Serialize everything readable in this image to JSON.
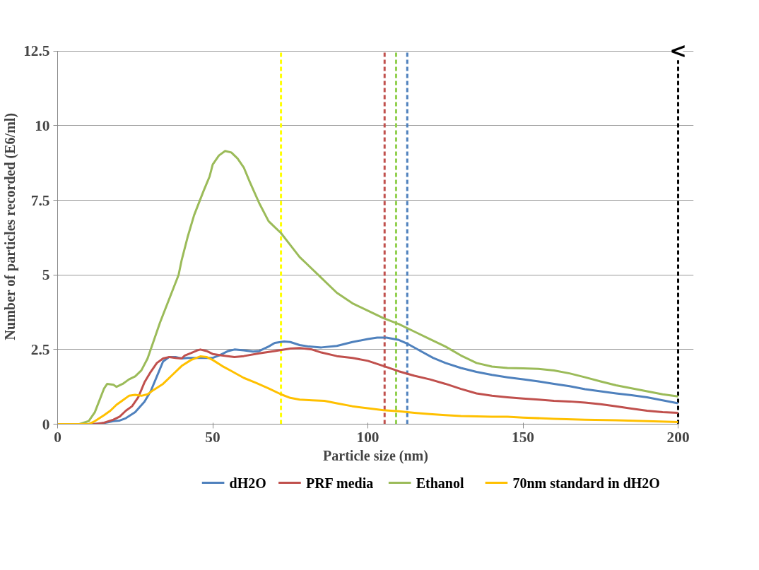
{
  "chart_data": {
    "type": "line",
    "xlabel": "Particle size (nm)",
    "ylabel": "Number of particles recorded (E6/ml)",
    "xlim": [
      0,
      200
    ],
    "ylim": [
      0,
      12.5
    ],
    "xticks": [
      0,
      50,
      100,
      150,
      200
    ],
    "yticks": [
      0,
      2.5,
      5,
      7.5,
      10,
      12.5
    ],
    "grid": "y",
    "legend": "bottom",
    "line_style": "solid",
    "marker": "none",
    "annotations": [
      {
        "text": "<",
        "x": 200,
        "y": 12.5
      }
    ],
    "ref_lines": [
      {
        "axis": "x",
        "value": 72,
        "label": null,
        "color": "#ffff00",
        "line_style": "dashed"
      },
      {
        "axis": "x",
        "value": 105.4,
        "label": null,
        "color": "#c0504d",
        "line_style": "dashed"
      },
      {
        "axis": "x",
        "value": 109.1,
        "label": null,
        "color": "#92d050",
        "line_style": "dashed"
      },
      {
        "axis": "x",
        "value": 112.7,
        "label": null,
        "color": "#4f81bd",
        "line_style": "dashed"
      },
      {
        "axis": "x",
        "value": 200,
        "label": null,
        "color": "#000000",
        "line_style": "dashed"
      }
    ],
    "series": [
      {
        "name": "dH2O",
        "color": "#4f81bd",
        "x": [
          0,
          10,
          14,
          18,
          20,
          22,
          25,
          28,
          30,
          32,
          34,
          36,
          38,
          40,
          42,
          46,
          50,
          52,
          55,
          57,
          60,
          63,
          65,
          68,
          70,
          73,
          75,
          78,
          81,
          85,
          90,
          95,
          100,
          103,
          106,
          110,
          113,
          117,
          121,
          125,
          130,
          135,
          140,
          145,
          150,
          155,
          160,
          165,
          170,
          175,
          180,
          185,
          190,
          195,
          200
        ],
        "values": [
          0,
          0,
          0.02,
          0.1,
          0.12,
          0.2,
          0.4,
          0.75,
          1.1,
          1.6,
          2.1,
          2.25,
          2.25,
          2.2,
          2.22,
          2.22,
          2.22,
          2.3,
          2.45,
          2.5,
          2.47,
          2.43,
          2.45,
          2.6,
          2.72,
          2.77,
          2.75,
          2.65,
          2.6,
          2.57,
          2.62,
          2.75,
          2.85,
          2.9,
          2.9,
          2.82,
          2.68,
          2.45,
          2.22,
          2.05,
          1.88,
          1.75,
          1.65,
          1.57,
          1.5,
          1.43,
          1.35,
          1.27,
          1.17,
          1.1,
          1.03,
          0.97,
          0.9,
          0.8,
          0.7
        ]
      },
      {
        "name": "PRF media",
        "color": "#c0504d",
        "x": [
          0,
          12,
          15,
          18,
          20,
          22,
          24,
          26,
          28,
          30,
          32,
          34,
          36,
          38,
          40,
          41,
          43,
          45,
          46,
          48,
          50,
          53,
          57,
          60,
          65,
          70,
          75,
          78,
          82,
          85,
          90,
          95,
          100,
          105,
          110,
          115,
          120,
          125,
          130,
          135,
          140,
          145,
          150,
          155,
          160,
          165,
          170,
          175,
          180,
          185,
          190,
          195,
          200
        ],
        "values": [
          0,
          0,
          0.05,
          0.15,
          0.25,
          0.45,
          0.6,
          0.9,
          1.4,
          1.75,
          2.05,
          2.2,
          2.25,
          2.22,
          2.2,
          2.3,
          2.38,
          2.47,
          2.5,
          2.45,
          2.35,
          2.3,
          2.25,
          2.28,
          2.37,
          2.45,
          2.53,
          2.55,
          2.5,
          2.4,
          2.28,
          2.22,
          2.12,
          1.95,
          1.77,
          1.62,
          1.5,
          1.35,
          1.18,
          1.03,
          0.95,
          0.9,
          0.86,
          0.82,
          0.78,
          0.76,
          0.72,
          0.67,
          0.6,
          0.52,
          0.45,
          0.4,
          0.38
        ]
      },
      {
        "name": "Ethanol",
        "color": "#9bbb59",
        "x": [
          0,
          7,
          10,
          12,
          15,
          16,
          18,
          19,
          21,
          23,
          25,
          27,
          29,
          31,
          33,
          36,
          39,
          40,
          42,
          44,
          47,
          49,
          50,
          52,
          54,
          56,
          58,
          60,
          62,
          65,
          68,
          70,
          72,
          75,
          78,
          80,
          85,
          90,
          95,
          100,
          105,
          110,
          115,
          120,
          125,
          130,
          135,
          140,
          145,
          150,
          155,
          160,
          165,
          170,
          175,
          180,
          185,
          190,
          195,
          200
        ],
        "values": [
          0,
          0,
          0.1,
          0.4,
          1.2,
          1.35,
          1.32,
          1.25,
          1.35,
          1.5,
          1.6,
          1.8,
          2.2,
          2.8,
          3.4,
          4.2,
          5.0,
          5.5,
          6.3,
          7.0,
          7.8,
          8.3,
          8.7,
          9.0,
          9.15,
          9.1,
          8.9,
          8.6,
          8.1,
          7.4,
          6.8,
          6.6,
          6.4,
          6.0,
          5.6,
          5.4,
          4.9,
          4.4,
          4.05,
          3.8,
          3.55,
          3.35,
          3.1,
          2.85,
          2.6,
          2.3,
          2.05,
          1.93,
          1.88,
          1.87,
          1.85,
          1.8,
          1.7,
          1.57,
          1.43,
          1.3,
          1.2,
          1.1,
          1.0,
          0.93
        ]
      },
      {
        "name": "70nm standard in dH2O",
        "color": "#ffc000",
        "x": [
          0,
          10,
          12,
          15,
          17,
          19,
          21,
          23,
          25,
          27,
          29,
          31,
          34,
          37,
          40,
          43,
          46,
          48,
          50,
          53,
          56,
          60,
          64,
          68,
          72,
          75,
          78,
          82,
          86,
          90,
          95,
          100,
          105,
          110,
          115,
          120,
          125,
          130,
          140,
          145,
          150,
          160,
          170,
          180,
          190,
          200
        ],
        "values": [
          0,
          0,
          0.1,
          0.3,
          0.45,
          0.65,
          0.8,
          0.95,
          0.98,
          0.95,
          1.0,
          1.15,
          1.35,
          1.65,
          1.95,
          2.15,
          2.27,
          2.25,
          2.15,
          1.95,
          1.78,
          1.55,
          1.38,
          1.2,
          1.0,
          0.88,
          0.82,
          0.8,
          0.78,
          0.7,
          0.6,
          0.53,
          0.47,
          0.43,
          0.38,
          0.34,
          0.3,
          0.27,
          0.25,
          0.25,
          0.22,
          0.18,
          0.15,
          0.13,
          0.1,
          0.07
        ]
      }
    ]
  }
}
